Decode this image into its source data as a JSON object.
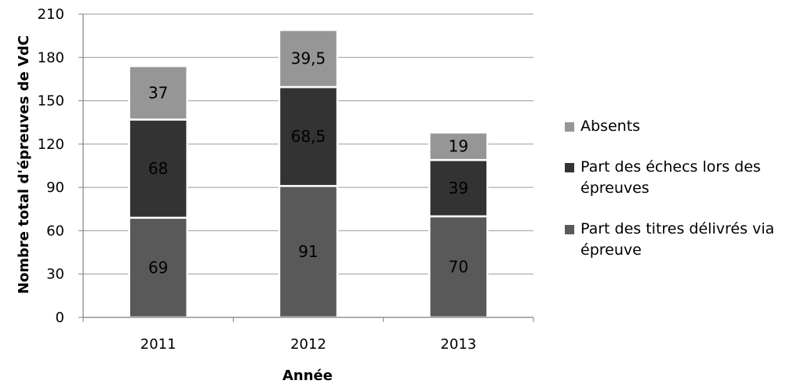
{
  "chart_data": {
    "type": "bar",
    "stacked": true,
    "categories": [
      "2011",
      "2012",
      "2013"
    ],
    "series": [
      {
        "name": "Part des titres délivrés via épreuve",
        "values": [
          69,
          91,
          70
        ],
        "labels": [
          "69",
          "91",
          "70"
        ],
        "color": "#595959"
      },
      {
        "name": "Part des échecs lors des épreuves",
        "values": [
          68,
          68.5,
          39
        ],
        "labels": [
          "68",
          "68,5",
          "39"
        ],
        "color": "#333333"
      },
      {
        "name": "Absents",
        "values": [
          37,
          39.5,
          19
        ],
        "labels": [
          "37",
          "39,5",
          "19"
        ],
        "color": "#969696"
      }
    ],
    "legend_order": [
      2,
      1,
      0
    ],
    "xlabel": "Année",
    "ylabel": "Nombre total d'épreuves de VdC",
    "ylim": [
      0,
      210
    ],
    "yticks": [
      0,
      30,
      60,
      90,
      120,
      150,
      180,
      210
    ],
    "grid": true,
    "legend_position": "right"
  }
}
